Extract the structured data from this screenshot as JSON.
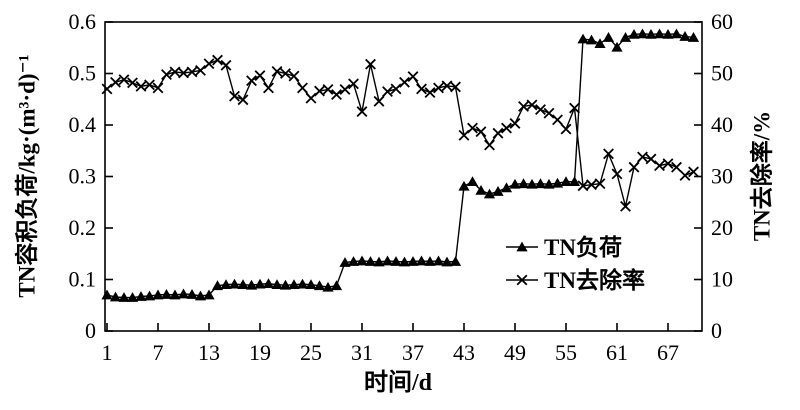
{
  "chart_data": {
    "type": "line",
    "title": "",
    "xlabel": "时间/d",
    "ylabel_left": "TN容积负荷/kg·(m³·d)⁻¹",
    "ylabel_right": "TN去除率/%",
    "xlim": [
      1,
      71
    ],
    "ylim_left": [
      0,
      0.6
    ],
    "ylim_right": [
      0,
      60
    ],
    "xticks": [
      1,
      7,
      13,
      19,
      25,
      31,
      37,
      43,
      49,
      55,
      61,
      67
    ],
    "yticks_left": [
      0,
      0.1,
      0.2,
      0.3,
      0.4,
      0.5,
      0.6
    ],
    "yticks_right": [
      0,
      10,
      20,
      30,
      40,
      50,
      60
    ],
    "grid": false,
    "legend_position": "inside-center-right",
    "x": [
      1,
      2,
      3,
      4,
      5,
      6,
      7,
      8,
      9,
      10,
      11,
      12,
      13,
      14,
      15,
      16,
      17,
      18,
      19,
      20,
      21,
      22,
      23,
      24,
      25,
      26,
      27,
      28,
      29,
      30,
      31,
      32,
      33,
      34,
      35,
      36,
      37,
      38,
      39,
      40,
      41,
      42,
      43,
      44,
      45,
      46,
      47,
      48,
      49,
      50,
      51,
      52,
      53,
      54,
      55,
      56,
      57,
      58,
      59,
      60,
      61,
      62,
      63,
      64,
      65,
      66,
      67,
      68,
      69,
      70
    ],
    "series": [
      {
        "name": "TN负荷",
        "axis": "left",
        "marker": "triangle",
        "color": "#000000",
        "values": [
          0.07,
          0.066,
          0.065,
          0.065,
          0.067,
          0.068,
          0.07,
          0.071,
          0.07,
          0.072,
          0.071,
          0.068,
          0.07,
          0.088,
          0.09,
          0.091,
          0.09,
          0.089,
          0.091,
          0.092,
          0.09,
          0.089,
          0.09,
          0.091,
          0.09,
          0.088,
          0.085,
          0.088,
          0.133,
          0.135,
          0.136,
          0.135,
          0.134,
          0.136,
          0.135,
          0.134,
          0.135,
          0.136,
          0.135,
          0.136,
          0.134,
          0.135,
          0.281,
          0.29,
          0.273,
          0.266,
          0.271,
          0.278,
          0.285,
          0.286,
          0.285,
          0.286,
          0.285,
          0.287,
          0.29,
          0.29,
          0.567,
          0.565,
          0.558,
          0.57,
          0.551,
          0.57,
          0.576,
          0.577,
          0.576,
          0.577,
          0.576,
          0.577,
          0.572,
          0.57
        ]
      },
      {
        "name": "TN去除率",
        "axis": "right",
        "marker": "x",
        "color": "#000000",
        "values": [
          47.0,
          48.3,
          48.8,
          48.2,
          47.5,
          47.8,
          47.2,
          49.8,
          50.3,
          50.1,
          50.3,
          50.6,
          51.9,
          52.6,
          51.6,
          45.6,
          44.9,
          48.6,
          49.6,
          47.2,
          50.4,
          50.0,
          49.5,
          47.2,
          45.2,
          46.6,
          46.9,
          45.9,
          46.9,
          48.0,
          42.6,
          51.8,
          44.6,
          46.5,
          47.0,
          48.3,
          49.4,
          47.0,
          46.3,
          47.2,
          47.6,
          47.4,
          38.0,
          39.4,
          38.7,
          36.1,
          38.4,
          39.4,
          40.3,
          43.6,
          43.9,
          43.0,
          42.3,
          41.0,
          39.2,
          43.3,
          28.2,
          28.4,
          28.6,
          34.4,
          30.5,
          24.2,
          31.8,
          33.8,
          33.4,
          32.1,
          32.5,
          31.8,
          30.2,
          30.9
        ]
      }
    ],
    "legend": [
      {
        "label": "TN负荷",
        "marker": "triangle"
      },
      {
        "label": "TN去除率",
        "marker": "x"
      }
    ]
  },
  "style": {
    "foreground": "#000000",
    "background": "#ffffff"
  }
}
